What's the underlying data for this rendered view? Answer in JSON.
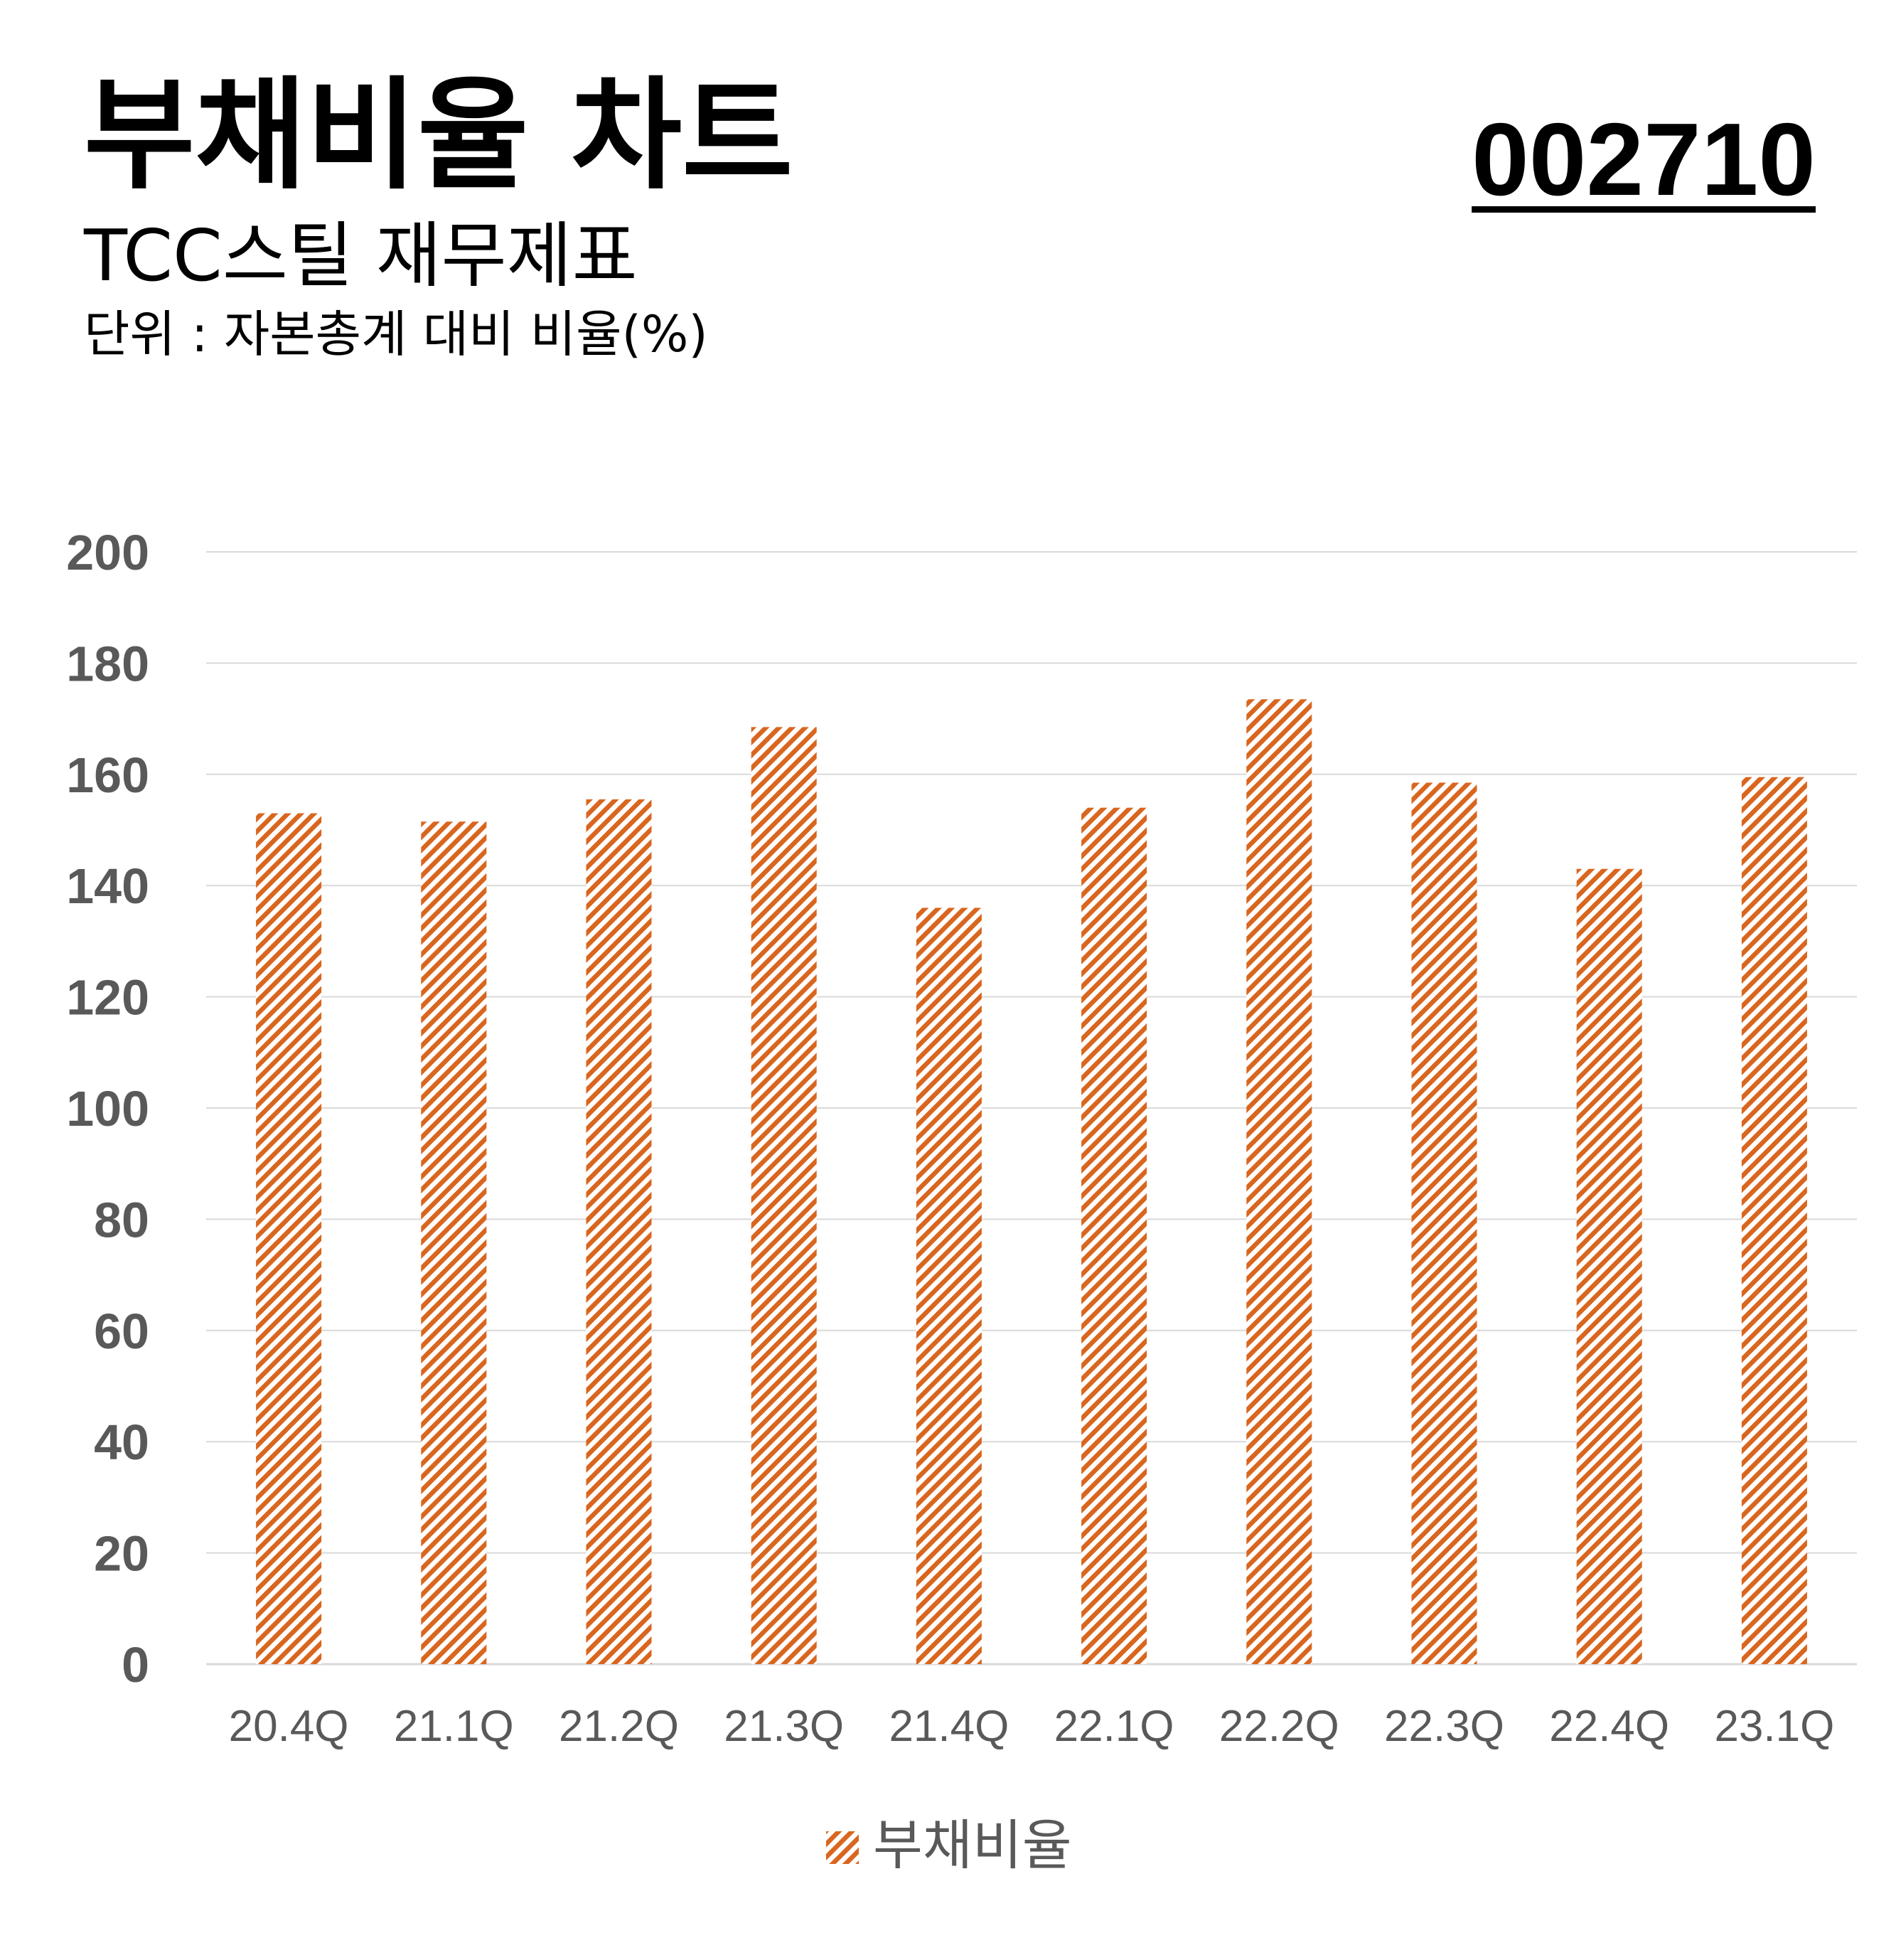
{
  "header": {
    "title": "부채비율 차트",
    "code": "002710",
    "subtitle": "TCC스틸 재무제표",
    "unit": "단위 : 자본총계 대비 비율(%)"
  },
  "colors": {
    "bar": "#d9661f",
    "grid": "#d9d9d9",
    "tick_text": "#595959"
  },
  "chart_data": {
    "type": "bar",
    "title": "부채비율 차트",
    "subtitle": "TCC스틸 재무제표",
    "xlabel": "",
    "ylabel": "",
    "categories": [
      "20.4Q",
      "21.1Q",
      "21.2Q",
      "21.3Q",
      "21.4Q",
      "22.1Q",
      "22.2Q",
      "22.3Q",
      "22.4Q",
      "23.1Q"
    ],
    "series": [
      {
        "name": "부채비율",
        "values": [
          153,
          151.5,
          155.5,
          168.5,
          136,
          154,
          173.5,
          158.5,
          143,
          159.5
        ],
        "pattern": "diagonal-hatch"
      }
    ],
    "ylim": [
      0,
      200
    ],
    "yticks": [
      0,
      20,
      40,
      60,
      80,
      100,
      120,
      140,
      160,
      180,
      200
    ],
    "grid": true,
    "legend_position": "bottom"
  }
}
